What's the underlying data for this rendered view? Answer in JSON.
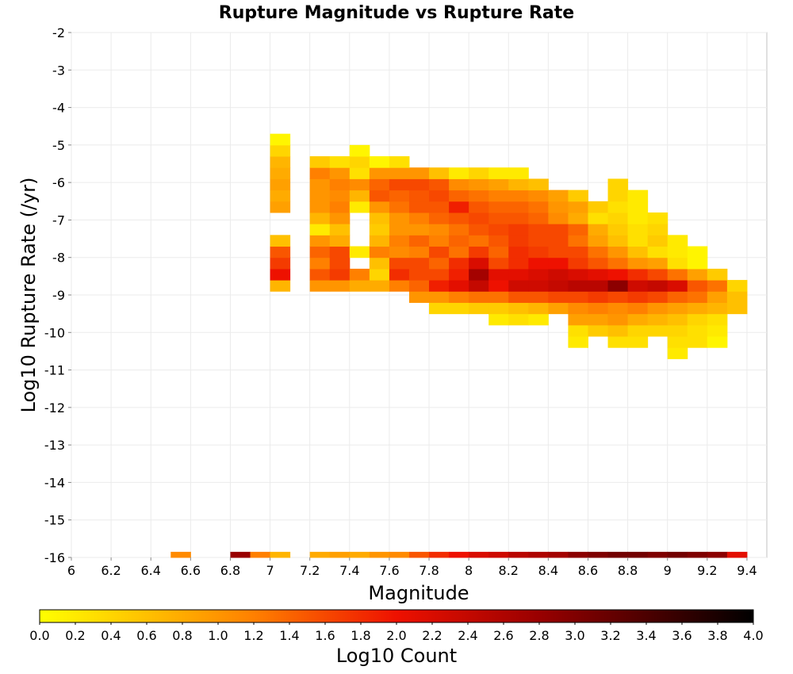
{
  "chart_data": {
    "type": "heatmap",
    "title": "Rupture Magnitude vs Rupture Rate",
    "xlabel": "Magnitude",
    "ylabel": "Log10 Rupture Rate (/yr)",
    "xlim": [
      6.0,
      9.5
    ],
    "ylim": [
      -16,
      -2
    ],
    "x_ticks": [
      "6",
      "6.2",
      "6.4",
      "6.6",
      "6.8",
      "7",
      "7.2",
      "7.4",
      "7.6",
      "7.8",
      "8",
      "8.2",
      "8.4",
      "8.6",
      "8.8",
      "9",
      "9.2",
      "9.4"
    ],
    "y_ticks": [
      "-2",
      "-3",
      "-4",
      "-5",
      "-6",
      "-7",
      "-8",
      "-9",
      "-10",
      "-11",
      "-12",
      "-13",
      "-14",
      "-15",
      "-16"
    ],
    "grid": true,
    "bin_width": 0.1,
    "rate_bin_height": 0.3,
    "rate_bin_bottom_edge": -11.0,
    "rate_bin_magnitude_starts": [
      7.0,
      7.2,
      7.3,
      7.4,
      7.5,
      7.6,
      7.7,
      7.8,
      7.9,
      8.0,
      8.1,
      8.2,
      8.3,
      8.4,
      8.5,
      8.6,
      8.7,
      8.8,
      8.9,
      9.0,
      9.1,
      9.2,
      9.3
    ],
    "rate_bins_log10_count": [
      [
        "",
        "",
        "",
        "",
        "",
        "",
        "",
        "",
        "",
        "",
        "",
        "",
        "",
        "",
        "",
        "",
        "",
        "",
        "",
        "",
        "",
        "",
        ""
      ],
      [
        "",
        "",
        "",
        "",
        "",
        "",
        "",
        "",
        "",
        "",
        "",
        "",
        "",
        "",
        "",
        "",
        "",
        "",
        "",
        "0.2",
        "",
        "",
        ""
      ],
      [
        "",
        "",
        "",
        "",
        "",
        "",
        "",
        "",
        "",
        "",
        "",
        "",
        "",
        "",
        "0.2",
        "",
        "0.3",
        "0.3",
        "",
        "0.3",
        "0.3",
        "0.1",
        ""
      ],
      [
        "",
        "",
        "",
        "",
        "",
        "",
        "",
        "",
        "",
        "",
        "",
        "",
        "",
        "",
        "0.3",
        "0.5",
        "0.6",
        "0.4",
        "0.4",
        "0.4",
        "0.3",
        "0.2",
        ""
      ],
      [
        "",
        "",
        "",
        "",
        "",
        "",
        "",
        "",
        "",
        "",
        "0.2",
        "0.3",
        "0.2",
        "",
        "0.9",
        "0.9",
        "1.0",
        "0.8",
        "0.7",
        "0.6",
        "0.4",
        "0.3",
        ""
      ],
      [
        "",
        "",
        "",
        "",
        "",
        "",
        "",
        "0.4",
        "0.4",
        "0.5",
        "0.5",
        "0.6",
        "0.7",
        "0.9",
        "1.1",
        "1.2",
        "1.1",
        "1.2",
        "1.0",
        "0.9",
        "0.8",
        "0.7",
        "0.6"
      ],
      [
        "",
        "",
        "",
        "",
        "",
        "",
        "1.0",
        "1.0",
        "1.2",
        "1.3",
        "1.3",
        "1.5",
        "1.5",
        "1.6",
        "1.6",
        "1.7",
        "1.6",
        "1.7",
        "1.6",
        "1.4",
        "1.3",
        "0.9",
        "0.6"
      ],
      [
        "0.7",
        "1.0",
        "1.0",
        "0.8",
        "0.8",
        "1.2",
        "1.4",
        "1.9",
        "2.1",
        "2.4",
        "2.0",
        "2.3",
        "2.3",
        "2.4",
        "2.5",
        "2.5",
        "2.9",
        "2.3",
        "2.4",
        "2.2",
        "1.5",
        "1.3",
        "0.4"
      ],
      [
        "2.0",
        "1.5",
        "1.7",
        "1.2",
        "0.4",
        "1.8",
        "1.6",
        "1.6",
        "1.9",
        "2.7",
        "2.1",
        "2.1",
        "2.2",
        "2.3",
        "2.2",
        "2.1",
        "2.0",
        "1.8",
        "1.6",
        "1.3",
        "0.9",
        "0.5",
        ""
      ],
      [
        "1.7",
        "1.2",
        "1.6",
        "",
        "0.6",
        "1.6",
        "1.6",
        "1.4",
        "1.8",
        "2.2",
        "1.6",
        "1.8",
        "2.0",
        "2.0",
        "1.7",
        "1.5",
        "1.3",
        "1.0",
        "0.9",
        "0.3",
        "0.1",
        "",
        ""
      ],
      [
        "1.5",
        "1.4",
        "1.6",
        "0.2",
        "1.2",
        "1.1",
        "1.2",
        "1.6",
        "1.3",
        "1.7",
        "1.4",
        "1.8",
        "1.7",
        "1.6",
        "1.6",
        "1.3",
        "1.0",
        "0.6",
        "0.3",
        "0.2",
        "0.1",
        "",
        ""
      ],
      [
        "0.6",
        "1.0",
        "0.8",
        "",
        "0.7",
        "1.2",
        "1.4",
        "1.2",
        "1.4",
        "1.3",
        "1.5",
        "1.7",
        "1.6",
        "1.6",
        "1.3",
        "0.9",
        "0.6",
        "0.3",
        "0.5",
        "0.2",
        "",
        "",
        ""
      ],
      [
        "",
        "0.2",
        "0.6",
        "",
        "0.5",
        "1.0",
        "1.0",
        "1.1",
        "1.3",
        "1.5",
        "1.6",
        "1.7",
        "1.6",
        "1.6",
        "1.4",
        "0.8",
        "0.5",
        "0.3",
        "0.4",
        "",
        "",
        "",
        ""
      ],
      [
        "",
        "0.7",
        "1.0",
        "",
        "0.6",
        "1.0",
        "1.2",
        "1.4",
        "1.5",
        "1.6",
        "1.5",
        "1.5",
        "1.4",
        "1.1",
        "0.8",
        "0.3",
        "0.4",
        "0.2",
        "0.3",
        "",
        "",
        "",
        ""
      ],
      [
        "0.9",
        "1.0",
        "1.2",
        "0.2",
        "1.0",
        "1.3",
        "1.5",
        "1.5",
        "1.9",
        "1.5",
        "1.4",
        "1.4",
        "1.3",
        "1.0",
        "0.9",
        "0.5",
        "0.3",
        "0.2",
        "",
        "",
        "",
        "",
        ""
      ],
      [
        "0.8",
        "1.0",
        "1.1",
        "0.7",
        "1.5",
        "1.4",
        "1.5",
        "1.6",
        "1.4",
        "1.3",
        "1.2",
        "1.2",
        "1.1",
        "0.9",
        "0.5",
        "",
        "0.4",
        "0.2",
        "",
        "",
        "",
        "",
        ""
      ],
      [
        "0.9",
        "1.0",
        "1.2",
        "1.1",
        "1.4",
        "1.6",
        "1.6",
        "1.5",
        "1.1",
        "1.0",
        "0.9",
        "0.7",
        "0.6",
        "",
        "",
        "",
        "0.4",
        "",
        "",
        "",
        "",
        "",
        ""
      ],
      [
        "0.8",
        "1.2",
        "1.0",
        "0.3",
        "1.0",
        "1.0",
        "1.0",
        "0.6",
        "0.2",
        "0.4",
        "0.2",
        "0.2",
        "",
        "",
        "",
        "",
        "",
        "",
        "",
        "",
        "",
        "",
        ""
      ],
      [
        "0.7",
        "0.5",
        "0.3",
        "0.4",
        "0.1",
        "0.3",
        "",
        "",
        "",
        "",
        "",
        "",
        "",
        "",
        "",
        "",
        "",
        "",
        "",
        "",
        "",
        "",
        ""
      ],
      [
        "0.4",
        "",
        "",
        "0.1",
        "",
        "",
        "",
        "",
        "",
        "",
        "",
        "",
        "",
        "",
        "",
        "",
        "",
        "",
        "",
        "",
        "",
        "",
        ""
      ],
      [
        "0.1",
        "",
        "",
        "",
        "",
        "",
        "",
        "",
        "",
        "",
        "",
        "",
        "",
        "",
        "",
        "",
        "",
        "",
        "",
        "",
        "",
        "",
        ""
      ]
    ],
    "floor_row_y_range": [
      -16.0,
      -15.85
    ],
    "floor_row_cells": [
      {
        "x": 6.5,
        "log10_count": 1.1
      },
      {
        "x": 6.8,
        "log10_count": 2.8
      },
      {
        "x": 6.9,
        "log10_count": 1.2
      },
      {
        "x": 7.0,
        "log10_count": 0.7
      },
      {
        "x": 7.2,
        "log10_count": 0.8
      },
      {
        "x": 7.3,
        "log10_count": 0.9
      },
      {
        "x": 7.4,
        "log10_count": 0.8
      },
      {
        "x": 7.5,
        "log10_count": 1.0
      },
      {
        "x": 7.6,
        "log10_count": 1.1
      },
      {
        "x": 7.7,
        "log10_count": 1.5
      },
      {
        "x": 7.8,
        "log10_count": 1.8
      },
      {
        "x": 7.9,
        "log10_count": 2.0
      },
      {
        "x": 8.0,
        "log10_count": 2.2
      },
      {
        "x": 8.1,
        "log10_count": 2.3
      },
      {
        "x": 8.2,
        "log10_count": 2.5
      },
      {
        "x": 8.3,
        "log10_count": 2.6
      },
      {
        "x": 8.4,
        "log10_count": 2.7
      },
      {
        "x": 8.5,
        "log10_count": 2.9
      },
      {
        "x": 8.6,
        "log10_count": 3.0
      },
      {
        "x": 8.7,
        "log10_count": 3.1
      },
      {
        "x": 8.8,
        "log10_count": 3.1
      },
      {
        "x": 8.9,
        "log10_count": 3.0
      },
      {
        "x": 9.0,
        "log10_count": 3.1
      },
      {
        "x": 9.1,
        "log10_count": 3.0
      },
      {
        "x": 9.2,
        "log10_count": 2.9
      },
      {
        "x": 9.3,
        "log10_count": 2.1
      }
    ],
    "colorbar": {
      "label": "Log10 Count",
      "range": [
        0,
        4
      ],
      "ticks": [
        "0.0",
        "0.2",
        "0.4",
        "0.6",
        "0.8",
        "1.0",
        "1.2",
        "1.4",
        "1.6",
        "1.8",
        "2.0",
        "2.2",
        "2.4",
        "2.6",
        "2.8",
        "3.0",
        "3.2",
        "3.4",
        "3.6",
        "3.8",
        "4.0"
      ],
      "stops": [
        {
          "v": 0.0,
          "color": "#ffff00"
        },
        {
          "v": 0.6,
          "color": "#ffc000"
        },
        {
          "v": 1.2,
          "color": "#ff8000"
        },
        {
          "v": 2.0,
          "color": "#ee1100"
        },
        {
          "v": 2.8,
          "color": "#990000"
        },
        {
          "v": 4.0,
          "color": "#000000"
        }
      ]
    }
  }
}
